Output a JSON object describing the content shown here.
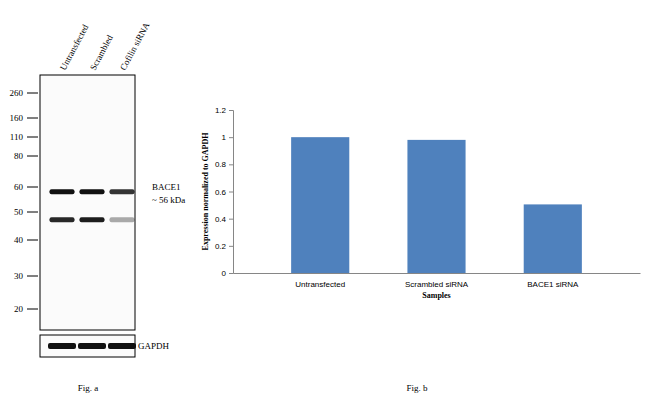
{
  "chart_data": {
    "type": "bar",
    "categories": [
      "Untransfected",
      "Scrambled siRNA",
      "BACE1 siRNA"
    ],
    "values": [
      1.0,
      0.98,
      0.505
    ],
    "color": "#4f81bd",
    "x_label": "Samples",
    "y_label": "Expression normalized to GAPDH",
    "ylim": [
      0,
      1.2
    ],
    "yticks": [
      0,
      0.2,
      0.4,
      0.6,
      0.8,
      1,
      1.2
    ],
    "grid": false,
    "caption": "Fig. b"
  },
  "blot": {
    "lanes": [
      "Untransfected",
      "Scrambled",
      "Cofilin siRNA"
    ],
    "markers": [
      260,
      160,
      110,
      80,
      60,
      50,
      40,
      30,
      20
    ],
    "bands": [
      {
        "kda": 58,
        "intensity": [
          1,
          1,
          0.85
        ]
      },
      {
        "kda": 47,
        "intensity": [
          0.9,
          0.95,
          0.35
        ]
      }
    ],
    "label": "BACE1",
    "size_label": "~ 56 kDa",
    "loading_control": {
      "label": "GAPDH",
      "intensity": [
        1,
        1,
        1
      ]
    },
    "caption": "Fig. a"
  }
}
